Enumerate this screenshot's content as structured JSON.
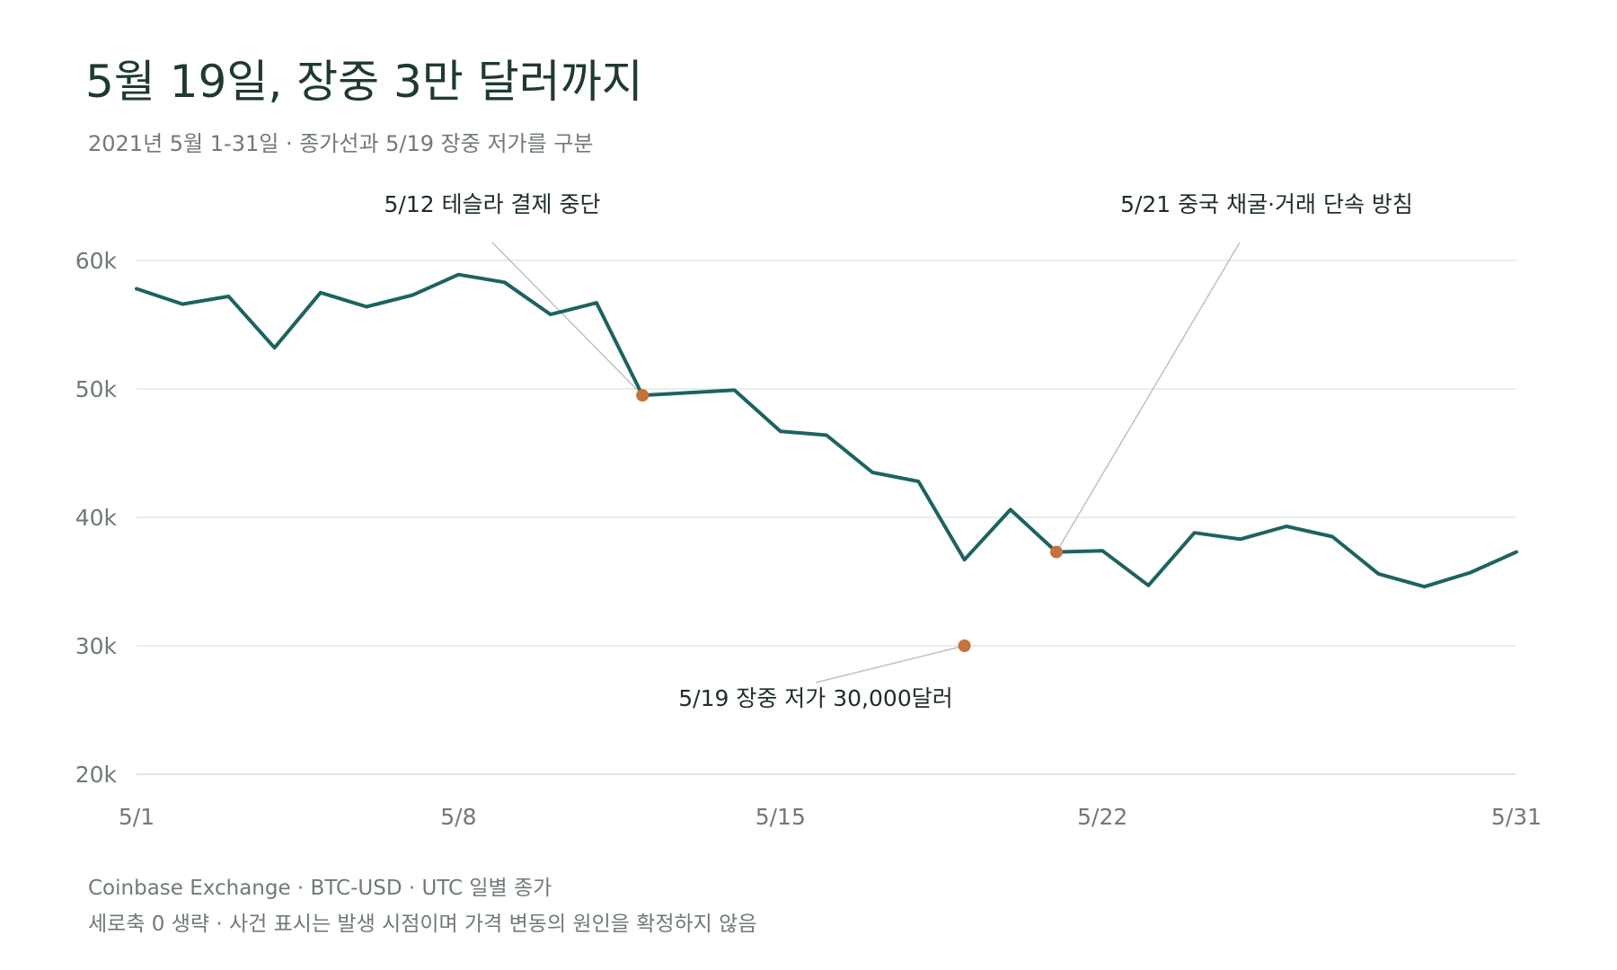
{
  "chart_data": {
    "type": "line",
    "title": "5월 19일, 장중 3만 달러까지",
    "subtitle": "2021년 5월 1-31일 · 종가선과 5/19 장중 저가를 구분",
    "xlabel": "",
    "ylabel": "",
    "x": [
      1,
      2,
      3,
      4,
      5,
      6,
      7,
      8,
      9,
      10,
      11,
      12,
      13,
      14,
      15,
      16,
      17,
      18,
      19,
      20,
      21,
      22,
      23,
      24,
      25,
      26,
      27,
      28,
      29,
      30,
      31
    ],
    "x_ticks": [
      {
        "day": 1,
        "label": "5/1"
      },
      {
        "day": 8,
        "label": "5/8"
      },
      {
        "day": 15,
        "label": "5/15"
      },
      {
        "day": 22,
        "label": "5/22"
      },
      {
        "day": 31,
        "label": "5/31"
      }
    ],
    "ylim": [
      20000,
      60000
    ],
    "y_ticks": [
      {
        "value": 20000,
        "label": "20k"
      },
      {
        "value": 30000,
        "label": "30k"
      },
      {
        "value": 40000,
        "label": "40k"
      },
      {
        "value": 50000,
        "label": "50k"
      },
      {
        "value": 60000,
        "label": "60k"
      }
    ],
    "grid": true,
    "series": [
      {
        "values": [
          57800,
          56600,
          57200,
          53200,
          57500,
          56400,
          57300,
          58900,
          58300,
          55800,
          56700,
          49500,
          49700,
          49900,
          46700,
          46400,
          43500,
          42800,
          36700,
          40600,
          37300,
          37400,
          34700,
          38800,
          38300,
          39300,
          38500,
          35600,
          34600,
          35700,
          37300
        ],
        "color": "#1d6360"
      }
    ],
    "markers": [
      {
        "day": 12,
        "value": 49500,
        "color": "#c4733c"
      },
      {
        "day": 19,
        "value": 30000,
        "color": "#c4733c"
      },
      {
        "day": 21,
        "value": 37300,
        "color": "#c4733c"
      }
    ],
    "annotations": [
      {
        "day": 12,
        "value": 49500,
        "text": "5/12 테슬라 결제 중단",
        "placement": "above-left"
      },
      {
        "day": 21,
        "value": 37300,
        "text": "5/21 중국 채굴·거래 단속 방침",
        "placement": "above-right"
      },
      {
        "day": 19,
        "value": 30000,
        "text": "5/19 장중 저가 30,000달러",
        "placement": "below-left"
      }
    ]
  },
  "footnotes": [
    "Coinbase Exchange · BTC-USD · UTC 일별 종가",
    "세로축 0 생략 · 사건 표시는 발생 시점이며 가격 변동의 원인을 확정하지 않음"
  ],
  "colors": {
    "line": "#1d6360",
    "marker": "#c4733c",
    "title": "#1e3a32",
    "muted_text": "#6f7a76",
    "grid": "#e3e6e4"
  }
}
